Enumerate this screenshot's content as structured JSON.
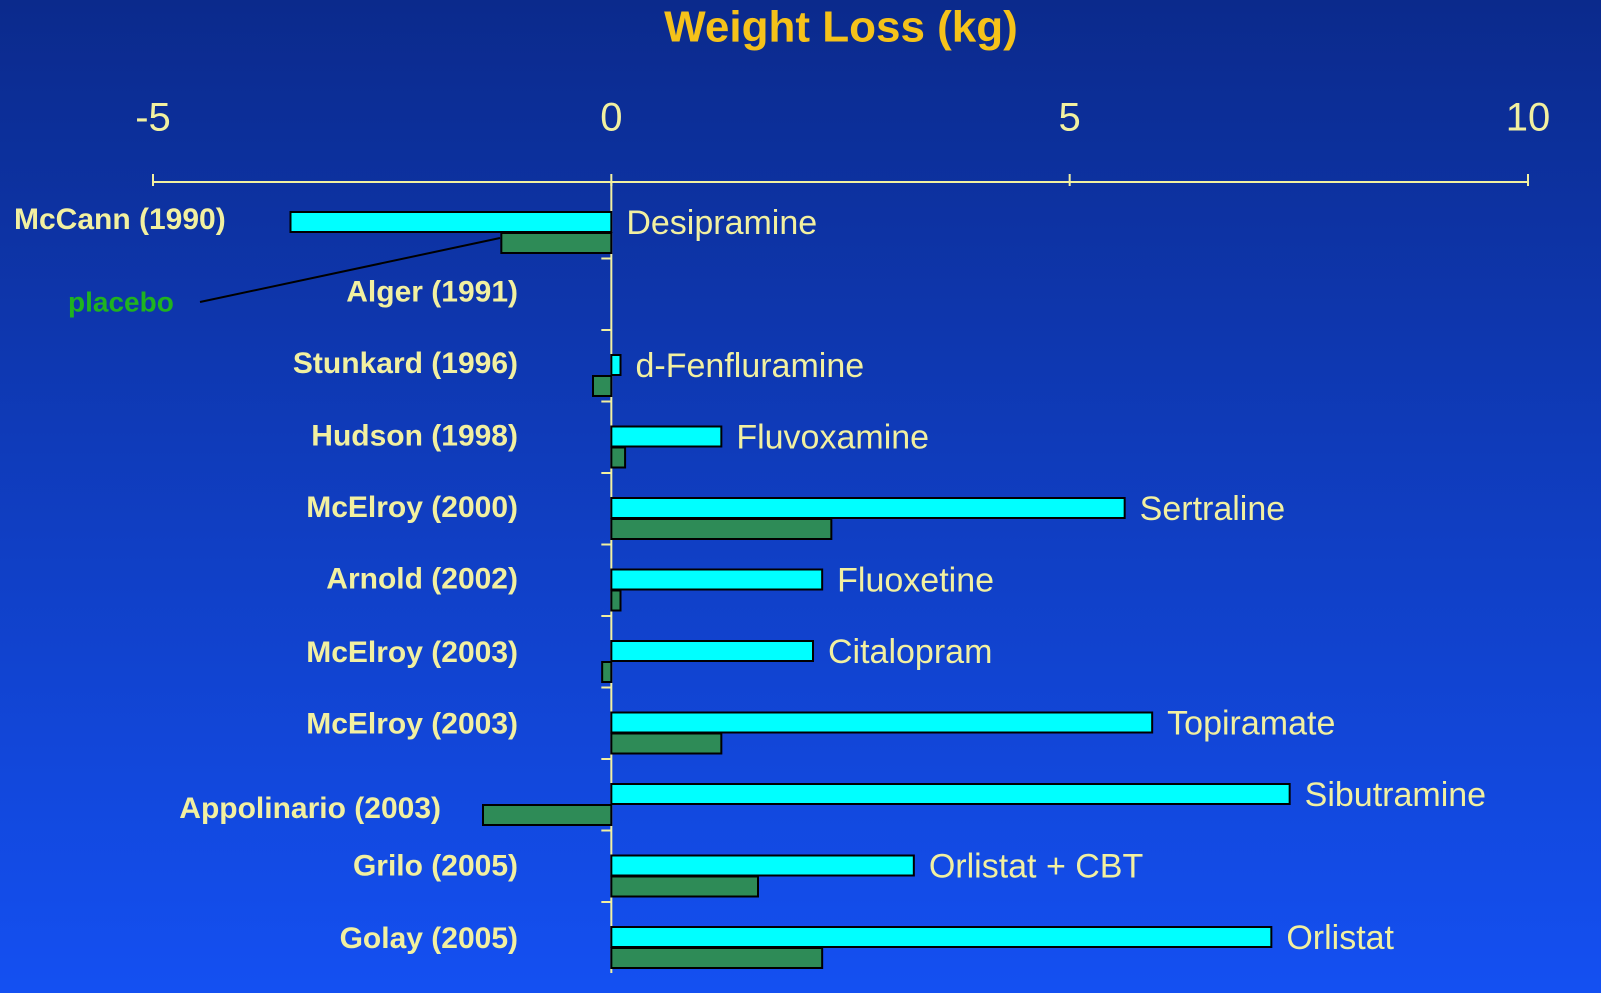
{
  "chart_data": {
    "type": "bar",
    "orientation": "horizontal",
    "title": "Weight Loss (kg)",
    "categories": [
      "McCann (1990)",
      "Alger (1991)",
      "Stunkard (1996)",
      "Hudson (1998)",
      "McElroy (2000)",
      "Arnold (2002)",
      "McElroy (2003)",
      "McElroy (2003)",
      "Appolinario (2003)",
      "Grilo (2005)",
      "Golay (2005)"
    ],
    "series": [
      {
        "color": "#00ffff",
        "values": [
          -3.5,
          null,
          0.1,
          1.2,
          5.6,
          2.3,
          2.2,
          5.9,
          7.4,
          3.3,
          7.2
        ],
        "labels": [
          "Desipramine",
          null,
          "d-Fenfluramine",
          "Fluvoxamine",
          "Sertraline",
          "Fluoxetine",
          "Citalopram",
          "Topiramate",
          "Sibutramine",
          "Orlistat + CBT",
          "Orlistat"
        ]
      },
      {
        "name": "placebo",
        "color": "#2e8b57",
        "values": [
          -1.2,
          null,
          -0.2,
          0.15,
          2.4,
          0.1,
          -0.1,
          1.2,
          -1.4,
          1.6,
          2.3
        ]
      }
    ],
    "xlim": [
      -5,
      10
    ],
    "xticks": [
      -5,
      0,
      5,
      10
    ],
    "xaxis_position": "top"
  }
}
